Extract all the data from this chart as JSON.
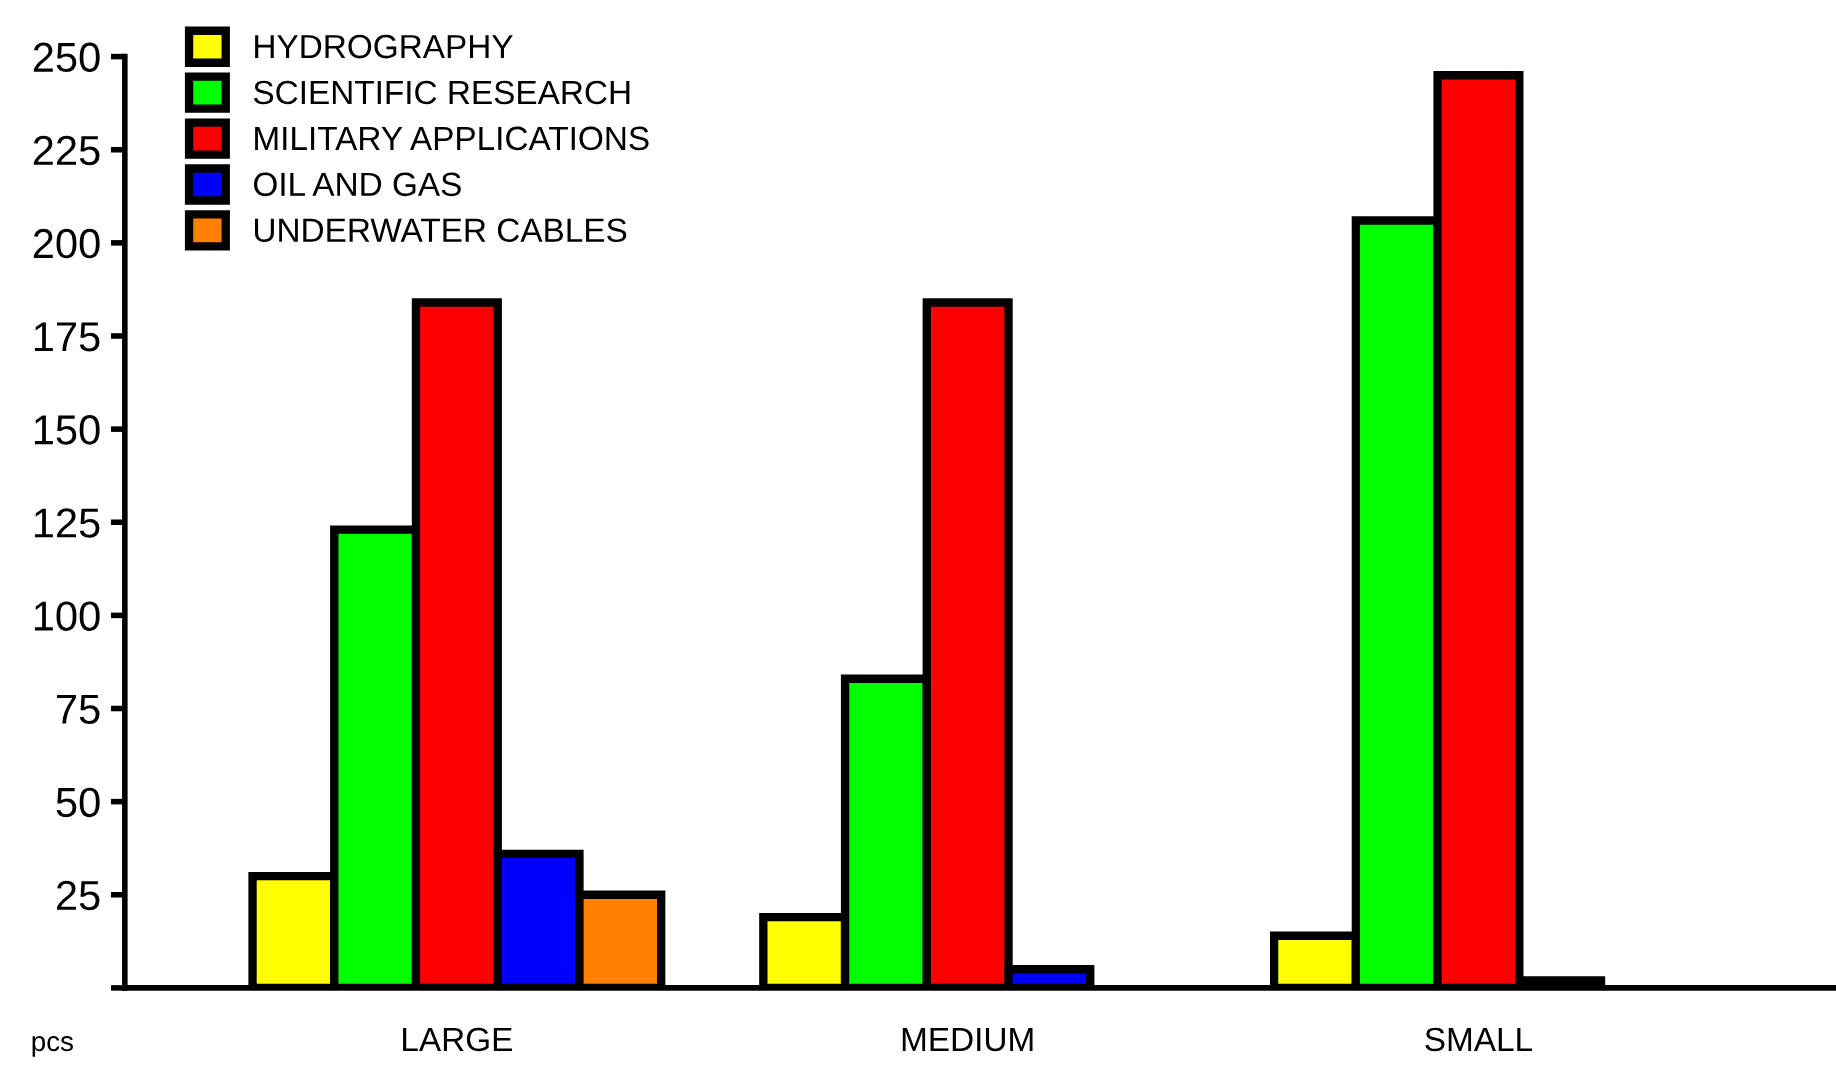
{
  "chart_data": {
    "type": "bar",
    "ylabel": "pcs",
    "categories": [
      "LARGE",
      "MEDIUM",
      "SMALL"
    ],
    "series": [
      {
        "name": "HYDROGRAPHY",
        "color": "#ffff00",
        "values": [
          30,
          19,
          14
        ]
      },
      {
        "name": "SCIENTIFIC RESEARCH",
        "color": "#00ff00",
        "values": [
          123,
          83,
          206
        ]
      },
      {
        "name": "MILITARY APPLICATIONS",
        "color": "#ff0000",
        "values": [
          184,
          184,
          245
        ]
      },
      {
        "name": "OIL AND GAS",
        "color": "#0000ff",
        "values": [
          36,
          5,
          2
        ]
      },
      {
        "name": "UNDERWATER CABLES",
        "color": "#ff8000",
        "values": [
          25,
          null,
          null
        ]
      }
    ],
    "ylim": [
      0,
      250
    ],
    "yticks": [
      {
        "value": 0,
        "label": null
      },
      25,
      50,
      75,
      100,
      125,
      150,
      175,
      200,
      225,
      250
    ],
    "grid": false,
    "legend": "top left"
  }
}
